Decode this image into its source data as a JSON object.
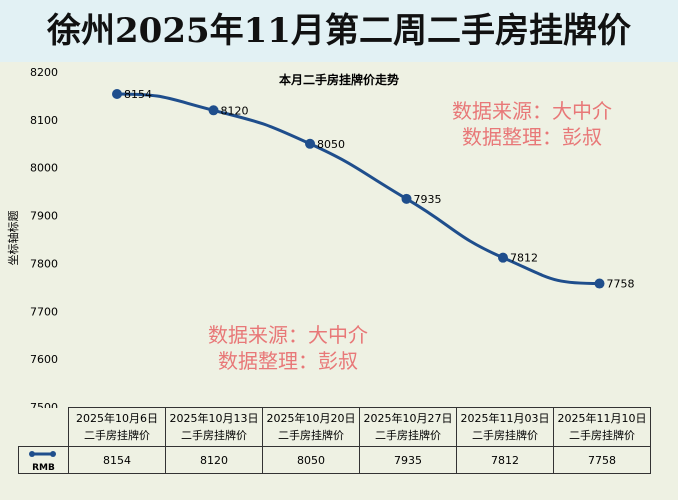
{
  "title": "徐州2025年11月第二周二手房挂牌价",
  "watermarks": [
    [
      "数据来源：大中介",
      "数据整理：彭叔"
    ],
    [
      "数据来源：大中介",
      "数据整理：彭叔"
    ]
  ],
  "chart_data": {
    "type": "line",
    "title": "本月二手房挂牌价走势",
    "ylabel": "坐标轴标题",
    "ylim": [
      7500,
      8200
    ],
    "yticks": [
      "8200",
      "8100",
      "8000",
      "7900",
      "7800",
      "7700",
      "7600",
      "7500"
    ],
    "categories": [
      [
        "2025年10月6日",
        "二手房挂牌价"
      ],
      [
        "2025年10月13日",
        "二手房挂牌价"
      ],
      [
        "2025年10月20日",
        "二手房挂牌价"
      ],
      [
        "2025年10月27日",
        "二手房挂牌价"
      ],
      [
        "2025年11月03日",
        "二手房挂牌价"
      ],
      [
        "2025年11月10日",
        "二手房挂牌价"
      ]
    ],
    "series": [
      {
        "name": "RMB",
        "values": [
          8154,
          8120,
          8050,
          7935,
          7812,
          7758
        ],
        "labels": [
          "8154",
          "8120",
          "8050",
          "7935",
          "7812",
          "7758"
        ]
      }
    ],
    "color": "#1f4e8c",
    "grid": false,
    "legend": "data-table"
  }
}
